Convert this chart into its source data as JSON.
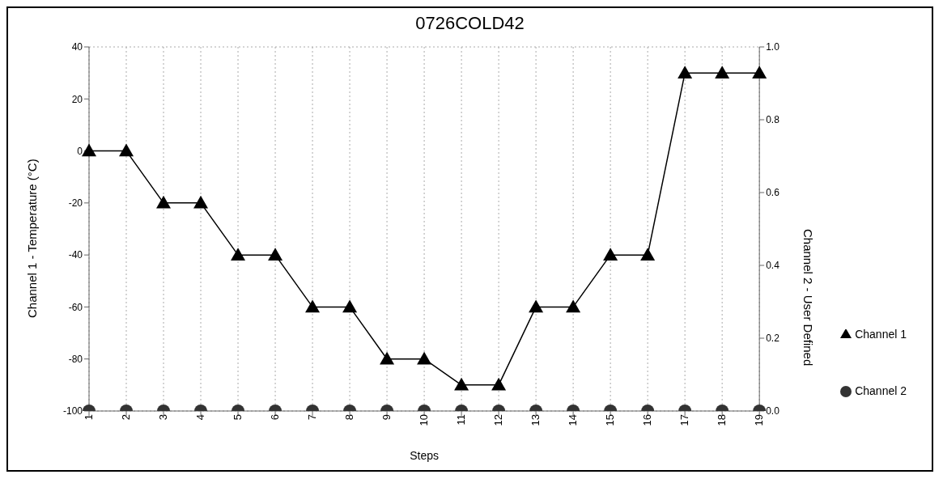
{
  "chart_data": {
    "type": "line",
    "title": "0726COLD42",
    "xlabel": "Steps",
    "ylabel": "Channel 1 - Temperature (°C)",
    "y2label": "Channel 2 - User Defined",
    "categories": [
      "1",
      "2",
      "3",
      "4",
      "5",
      "6",
      "7",
      "8",
      "9",
      "10",
      "11",
      "12",
      "13",
      "14",
      "15",
      "16",
      "17",
      "18",
      "19"
    ],
    "series": [
      {
        "name": "Channel 1",
        "marker": "triangle",
        "color": "#000000",
        "values": [
          0,
          0,
          -20,
          -20,
          -40,
          -40,
          -60,
          -60,
          -80,
          -80,
          -90,
          -90,
          -60,
          -60,
          -40,
          -40,
          30,
          30,
          30
        ]
      },
      {
        "name": "Channel 2",
        "type": "scatter",
        "marker": "circle",
        "axis": "y2",
        "color": "#333333",
        "values": [
          0,
          0,
          0,
          0,
          0,
          0,
          0,
          0,
          0,
          0,
          0,
          0,
          0,
          0,
          0,
          0,
          0,
          0,
          0
        ]
      }
    ],
    "ylim": [
      -100,
      40
    ],
    "yticks": [
      -100,
      -80,
      -60,
      -40,
      -20,
      0,
      20,
      40
    ],
    "y2lim": [
      0,
      1
    ],
    "y2ticks": [
      {
        "value": 0,
        "label": "0.0"
      },
      {
        "value": 0.2,
        "label": "0.2"
      },
      {
        "value": 0.4,
        "label": "0.4"
      },
      {
        "value": 0.6,
        "label": "0.6"
      },
      {
        "value": 0.8,
        "label": "0.8"
      },
      {
        "value": 1,
        "label": "1.0"
      }
    ],
    "grid": true,
    "legend": "right"
  }
}
